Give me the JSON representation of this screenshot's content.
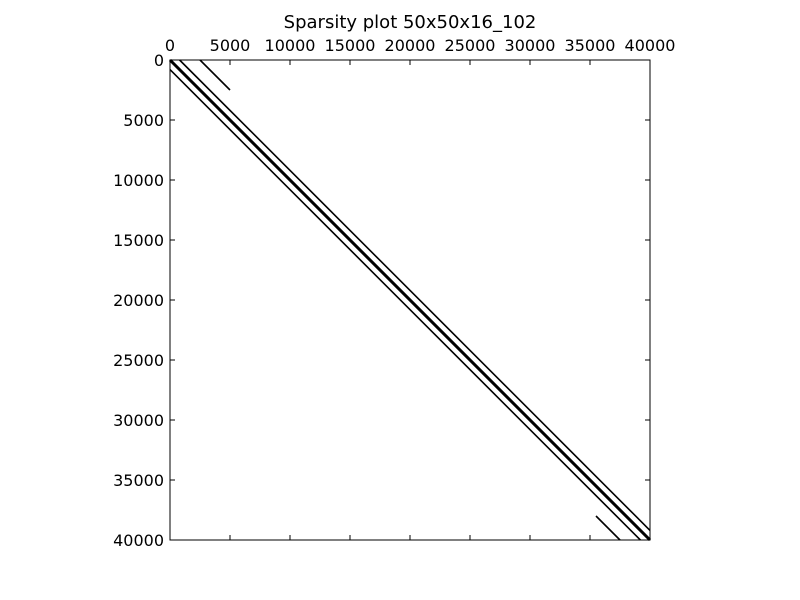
{
  "chart_data": {
    "type": "scatter",
    "title": "Sparsity plot 50x50x16_102",
    "xlabel": "",
    "ylabel": "",
    "xlim": [
      0,
      40000
    ],
    "ylim": [
      0,
      40000
    ],
    "x_axis_position": "top",
    "y_inverted": true,
    "grid": false,
    "xticks": [
      0,
      5000,
      10000,
      15000,
      20000,
      25000,
      30000,
      35000,
      40000
    ],
    "xtick_labels": [
      "0",
      "5000",
      "10000",
      "15000",
      "20000",
      "25000",
      "30000",
      "35000",
      "40000"
    ],
    "yticks": [
      0,
      5000,
      10000,
      15000,
      20000,
      25000,
      30000,
      35000,
      40000
    ],
    "ytick_labels": [
      "0",
      "5000",
      "10000",
      "15000",
      "20000",
      "25000",
      "30000",
      "35000",
      "40000"
    ],
    "n": 40000,
    "diagonal_offsets": [
      -2500,
      -800,
      -50,
      0,
      50,
      800,
      2500
    ],
    "series": [
      {
        "name": "diagonal offset -2500",
        "x": [
          0,
          37500
        ],
        "y": [
          2500,
          40000
        ],
        "segment": [
          38000,
          40000
        ]
      },
      {
        "name": "diagonal offset -800",
        "x": [
          0,
          39200
        ],
        "y": [
          800,
          40000
        ]
      },
      {
        "name": "main diagonal band",
        "x": [
          0,
          40000
        ],
        "y": [
          0,
          40000
        ]
      },
      {
        "name": "diagonal offset 800",
        "x": [
          800,
          40000
        ],
        "y": [
          0,
          39200
        ]
      },
      {
        "name": "diagonal offset 2500",
        "x": [
          2500,
          40000
        ],
        "y": [
          0,
          37500
        ],
        "segment": [
          0,
          2500
        ]
      }
    ]
  }
}
